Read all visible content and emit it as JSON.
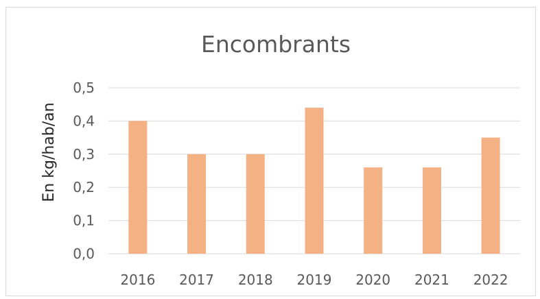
{
  "chart_data": {
    "type": "bar",
    "title": "Encombrants",
    "xlabel": "",
    "ylabel": "En kg/hab/an",
    "categories": [
      "2016",
      "2017",
      "2018",
      "2019",
      "2020",
      "2021",
      "2022"
    ],
    "values": [
      0.4,
      0.3,
      0.3,
      0.44,
      0.26,
      0.26,
      0.35
    ],
    "ylim": [
      0,
      0.5
    ],
    "yticks": [
      "0,0",
      "0,1",
      "0,2",
      "0,3",
      "0,4",
      "0,5"
    ],
    "grid": true,
    "legend": "none",
    "bar_color": "#F4B183"
  }
}
